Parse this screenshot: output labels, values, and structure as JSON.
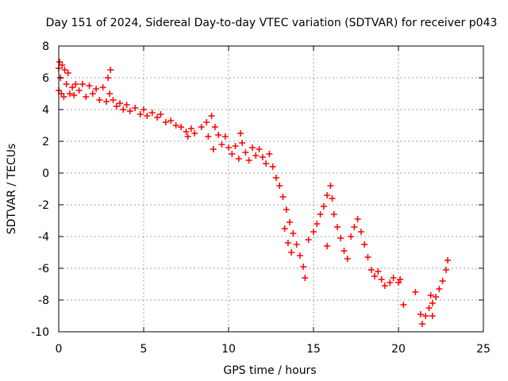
{
  "chart_data": {
    "type": "scatter",
    "title": "Day 151 of 2024, Sidereal Day-to-day VTEC variation (SDTVAR) for receiver p043",
    "xlabel": "GPS time / hours",
    "ylabel": "SDTVAR / TECUs",
    "xlim": [
      0,
      25
    ],
    "ylim": [
      -10,
      8
    ],
    "xticks": [
      0,
      5,
      10,
      15,
      20,
      25
    ],
    "xtick_labels": [
      "0",
      "5",
      "10",
      "15",
      "20",
      "25"
    ],
    "yticks": [
      -10,
      -8,
      -6,
      -4,
      -2,
      0,
      2,
      4,
      6,
      8
    ],
    "ytick_labels": [
      "-10",
      "-8",
      "-6",
      "-4",
      "-2",
      "0",
      "2",
      "4",
      "6",
      "8"
    ],
    "grid": true,
    "marker": "+",
    "marker_color": "#ff0000",
    "series": [
      {
        "name": "SDTVAR",
        "points": [
          [
            0.0,
            5.2
          ],
          [
            0.0,
            6.6
          ],
          [
            0.05,
            7.0
          ],
          [
            0.1,
            6.0
          ],
          [
            0.15,
            5.0
          ],
          [
            0.2,
            6.8
          ],
          [
            0.3,
            4.8
          ],
          [
            0.35,
            6.5
          ],
          [
            0.45,
            5.6
          ],
          [
            0.55,
            6.3
          ],
          [
            0.65,
            5.0
          ],
          [
            0.8,
            5.4
          ],
          [
            0.9,
            4.9
          ],
          [
            1.0,
            5.6
          ],
          [
            1.2,
            5.2
          ],
          [
            1.4,
            5.6
          ],
          [
            1.6,
            4.8
          ],
          [
            1.8,
            5.5
          ],
          [
            2.0,
            5.0
          ],
          [
            2.2,
            5.3
          ],
          [
            2.4,
            4.6
          ],
          [
            2.6,
            5.4
          ],
          [
            2.8,
            4.5
          ],
          [
            3.0,
            5.0
          ],
          [
            2.9,
            6.0
          ],
          [
            3.05,
            6.5
          ],
          [
            3.2,
            4.6
          ],
          [
            3.4,
            4.2
          ],
          [
            3.6,
            4.4
          ],
          [
            3.8,
            4.0
          ],
          [
            4.0,
            4.3
          ],
          [
            4.2,
            3.9
          ],
          [
            4.5,
            4.1
          ],
          [
            4.8,
            3.7
          ],
          [
            5.0,
            4.0
          ],
          [
            5.2,
            3.6
          ],
          [
            5.5,
            3.8
          ],
          [
            5.8,
            3.5
          ],
          [
            6.0,
            3.7
          ],
          [
            6.3,
            3.2
          ],
          [
            6.6,
            3.3
          ],
          [
            6.9,
            3.0
          ],
          [
            7.2,
            2.9
          ],
          [
            7.5,
            2.6
          ],
          [
            7.8,
            2.8
          ],
          [
            7.6,
            2.3
          ],
          [
            8.0,
            2.5
          ],
          [
            8.4,
            2.9
          ],
          [
            8.7,
            3.2
          ],
          [
            8.8,
            2.3
          ],
          [
            9.0,
            3.6
          ],
          [
            9.1,
            1.5
          ],
          [
            9.2,
            2.9
          ],
          [
            9.4,
            2.4
          ],
          [
            9.6,
            1.8
          ],
          [
            9.8,
            2.3
          ],
          [
            10.0,
            1.6
          ],
          [
            10.2,
            1.2
          ],
          [
            10.4,
            1.7
          ],
          [
            10.6,
            0.9
          ],
          [
            10.7,
            2.5
          ],
          [
            10.8,
            1.9
          ],
          [
            11.0,
            1.3
          ],
          [
            11.2,
            0.8
          ],
          [
            11.4,
            1.6
          ],
          [
            11.6,
            1.1
          ],
          [
            11.8,
            1.5
          ],
          [
            12.0,
            1.0
          ],
          [
            12.2,
            0.6
          ],
          [
            12.4,
            1.2
          ],
          [
            12.6,
            0.4
          ],
          [
            12.8,
            -0.3
          ],
          [
            13.0,
            -0.8
          ],
          [
            13.2,
            -1.5
          ],
          [
            13.4,
            -2.3
          ],
          [
            13.6,
            -3.1
          ],
          [
            13.8,
            -3.8
          ],
          [
            14.0,
            -4.5
          ],
          [
            14.2,
            -5.2
          ],
          [
            14.4,
            -5.9
          ],
          [
            14.5,
            -6.6
          ],
          [
            13.3,
            -3.5
          ],
          [
            13.5,
            -4.4
          ],
          [
            13.7,
            -5.0
          ],
          [
            14.7,
            -4.2
          ],
          [
            15.0,
            -3.7
          ],
          [
            15.2,
            -3.2
          ],
          [
            15.4,
            -2.6
          ],
          [
            15.6,
            -2.1
          ],
          [
            15.8,
            -1.4
          ],
          [
            16.0,
            -0.8
          ],
          [
            16.1,
            -1.6
          ],
          [
            16.2,
            -2.6
          ],
          [
            16.4,
            -3.4
          ],
          [
            16.6,
            -4.1
          ],
          [
            16.8,
            -4.9
          ],
          [
            17.0,
            -5.4
          ],
          [
            15.8,
            -4.6
          ],
          [
            17.2,
            -4.0
          ],
          [
            17.4,
            -3.4
          ],
          [
            17.6,
            -2.9
          ],
          [
            17.8,
            -3.7
          ],
          [
            18.0,
            -4.5
          ],
          [
            18.2,
            -5.3
          ],
          [
            18.4,
            -6.1
          ],
          [
            18.6,
            -6.5
          ],
          [
            18.8,
            -6.2
          ],
          [
            19.0,
            -6.7
          ],
          [
            19.2,
            -7.1
          ],
          [
            19.5,
            -6.9
          ],
          [
            19.7,
            -6.6
          ],
          [
            20.0,
            -6.9
          ],
          [
            20.1,
            -6.7
          ],
          [
            20.3,
            -8.3
          ],
          [
            21.0,
            -7.5
          ],
          [
            21.3,
            -8.9
          ],
          [
            21.4,
            -9.5
          ],
          [
            21.6,
            -9.0
          ],
          [
            21.8,
            -8.5
          ],
          [
            22.0,
            -8.2
          ],
          [
            22.2,
            -7.8
          ],
          [
            22.4,
            -7.3
          ],
          [
            22.6,
            -6.8
          ],
          [
            22.8,
            -6.1
          ],
          [
            22.9,
            -5.5
          ],
          [
            22.0,
            -9.0
          ],
          [
            21.9,
            -7.7
          ]
        ]
      }
    ]
  }
}
